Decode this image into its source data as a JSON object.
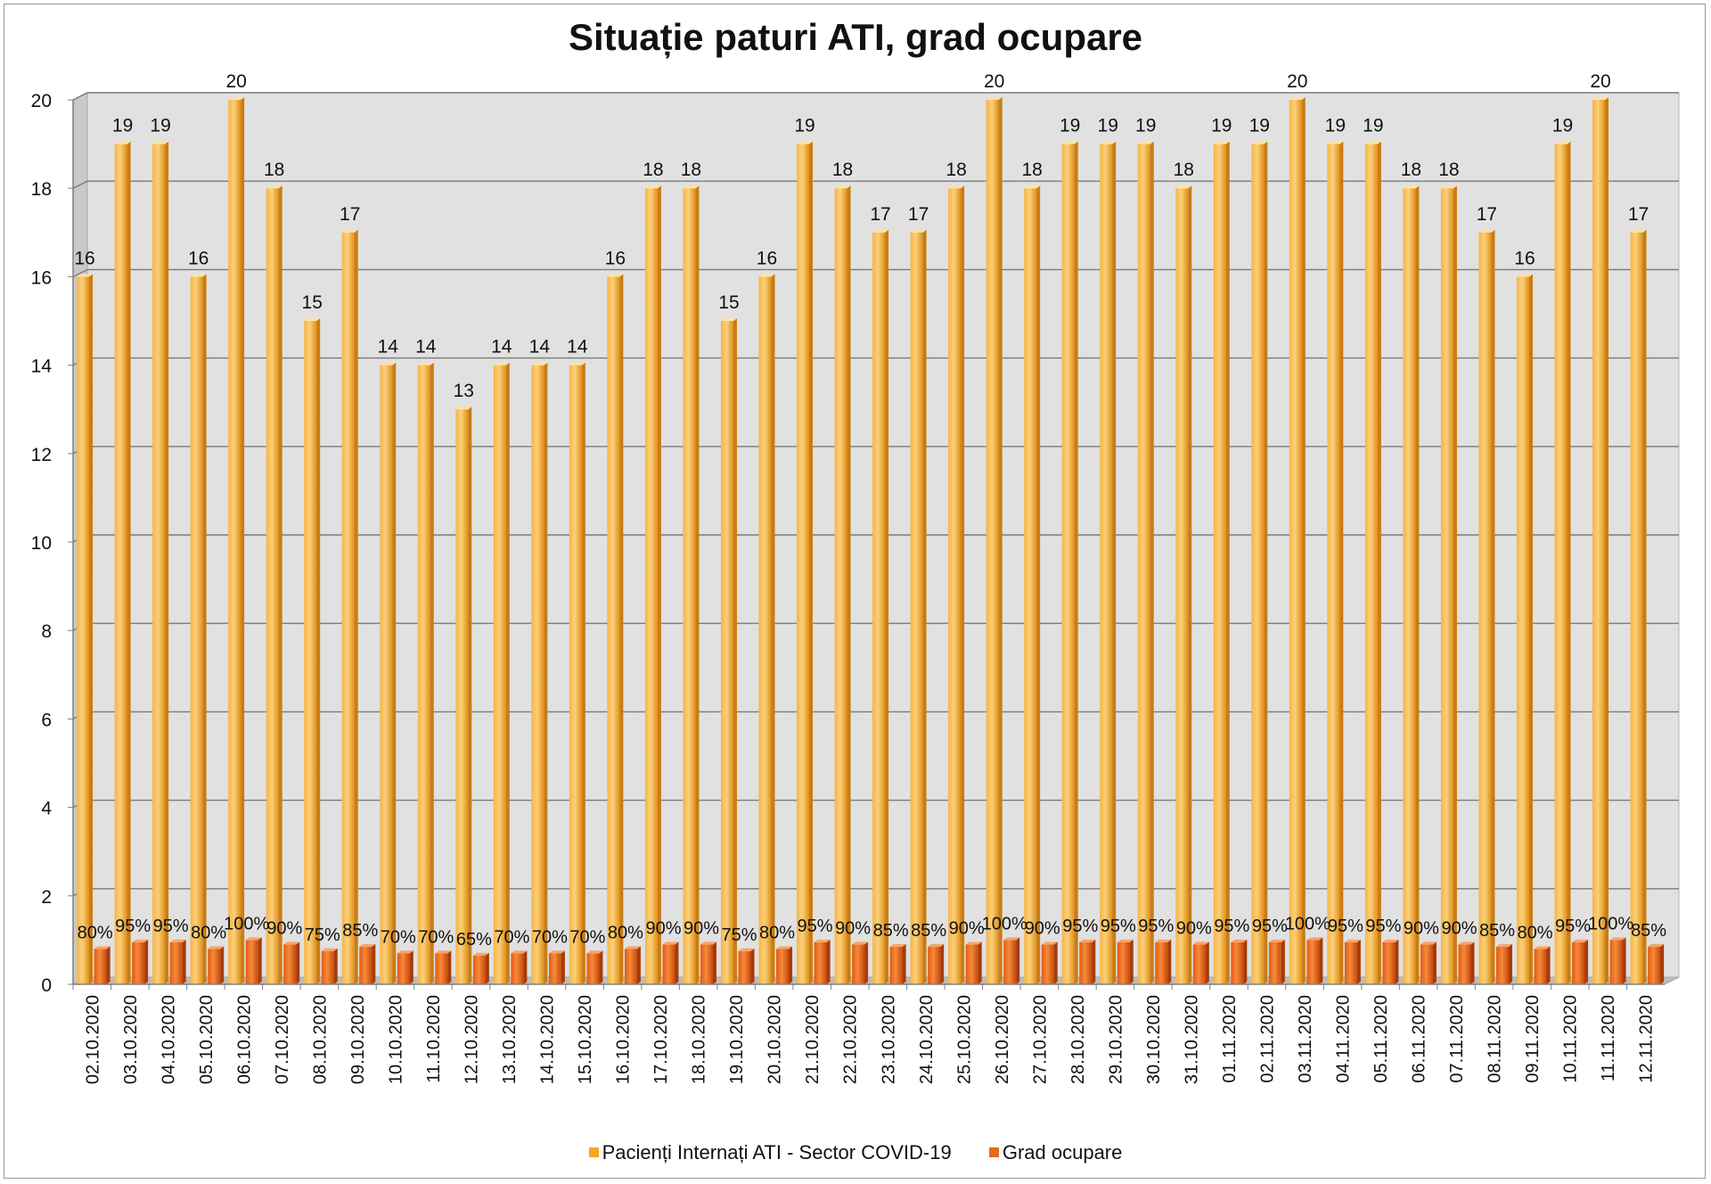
{
  "chart_data": {
    "type": "bar",
    "title": "Situație paturi ATI, grad ocupare",
    "xlabel": "",
    "ylabel": "",
    "ylim": [
      0,
      20
    ],
    "yticks": [
      0,
      2,
      4,
      6,
      8,
      10,
      12,
      14,
      16,
      18,
      20
    ],
    "grid": true,
    "legend": "bottom",
    "categories": [
      "02.10.2020",
      "03.10.2020",
      "04.10.2020",
      "05.10.2020",
      "06.10.2020",
      "07.10.2020",
      "08.10.2020",
      "09.10.2020",
      "10.10.2020",
      "11.10.2020",
      "12.10.2020",
      "13.10.2020",
      "14.10.2020",
      "15.10.2020",
      "16.10.2020",
      "17.10.2020",
      "18.10.2020",
      "19.10.2020",
      "20.10.2020",
      "21.10.2020",
      "22.10.2020",
      "23.10.2020",
      "24.10.2020",
      "25.10.2020",
      "26.10.2020",
      "27.10.2020",
      "28.10.2020",
      "29.10.2020",
      "30.10.2020",
      "31.10.2020",
      "01.11.2020",
      "02.11.2020",
      "03.11.2020",
      "04.11.2020",
      "05.11.2020",
      "06.11.2020",
      "07.11.2020",
      "08.11.2020",
      "09.11.2020",
      "10.11.2020",
      "11.11.2020",
      "12.11.2020"
    ],
    "series": [
      {
        "name": "Pacienți Internați ATI - Sector COVID-19",
        "color": "#f5a623",
        "values": [
          16,
          19,
          19,
          16,
          20,
          18,
          15,
          17,
          14,
          14,
          13,
          14,
          14,
          14,
          16,
          18,
          18,
          15,
          16,
          19,
          18,
          17,
          17,
          18,
          20,
          18,
          19,
          19,
          19,
          18,
          19,
          19,
          20,
          19,
          19,
          18,
          18,
          17,
          16,
          19,
          20,
          17
        ],
        "labels": [
          "16",
          "19",
          "19",
          "16",
          "20",
          "18",
          "15",
          "17",
          "14",
          "14",
          "13",
          "14",
          "14",
          "14",
          "16",
          "18",
          "18",
          "15",
          "16",
          "19",
          "18",
          "17",
          "17",
          "18",
          "20",
          "18",
          "19",
          "19",
          "19",
          "18",
          "19",
          "19",
          "20",
          "19",
          "19",
          "18",
          "18",
          "17",
          "16",
          "19",
          "20",
          "17"
        ]
      },
      {
        "name": "Grad ocupare",
        "color": "#e8681a",
        "values": [
          0.8,
          0.95,
          0.95,
          0.8,
          1.0,
          0.9,
          0.75,
          0.85,
          0.7,
          0.7,
          0.65,
          0.7,
          0.7,
          0.7,
          0.8,
          0.9,
          0.9,
          0.75,
          0.8,
          0.95,
          0.9,
          0.85,
          0.85,
          0.9,
          1.0,
          0.9,
          0.95,
          0.95,
          0.95,
          0.9,
          0.95,
          0.95,
          1.0,
          0.95,
          0.95,
          0.9,
          0.9,
          0.85,
          0.8,
          0.95,
          1.0,
          0.85
        ],
        "labels": [
          "80%",
          "95%",
          "95%",
          "80%",
          "100%",
          "90%",
          "75%",
          "85%",
          "70%",
          "70%",
          "65%",
          "70%",
          "70%",
          "70%",
          "80%",
          "90%",
          "90%",
          "75%",
          "80%",
          "95%",
          "90%",
          "85%",
          "85%",
          "90%",
          "100%",
          "90%",
          "95%",
          "95%",
          "95%",
          "90%",
          "95%",
          "95%",
          "100%",
          "95%",
          "95%",
          "90%",
          "90%",
          "85%",
          "80%",
          "95%",
          "100%",
          "85%"
        ]
      }
    ]
  }
}
